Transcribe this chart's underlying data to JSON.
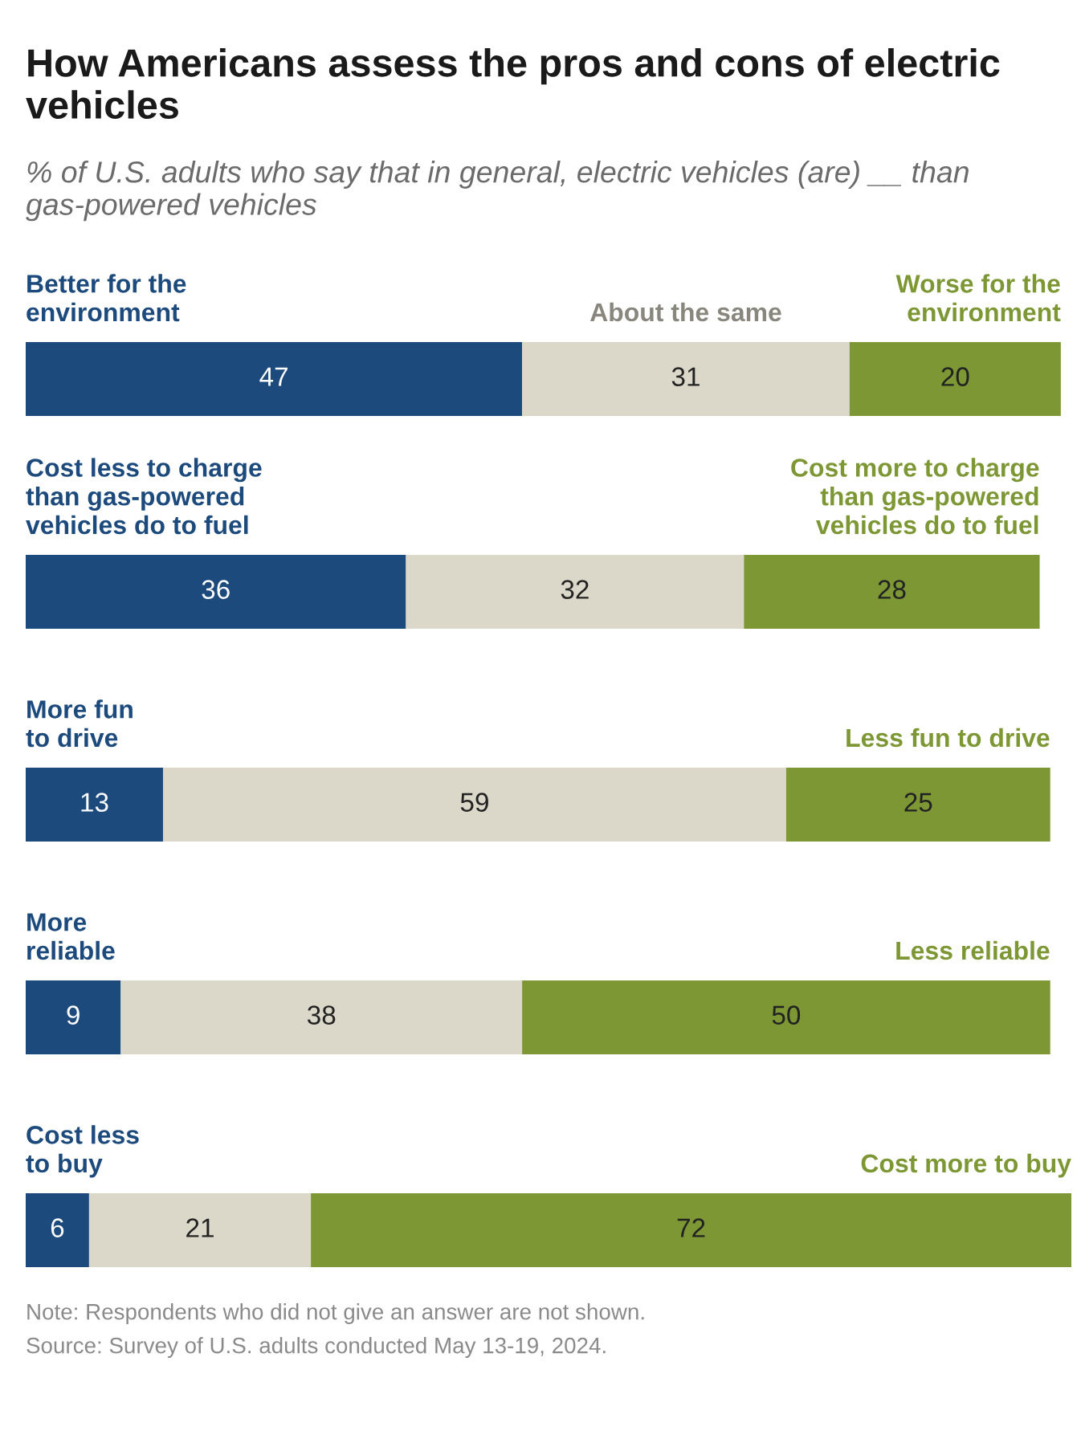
{
  "chart_data": [
    {
      "type": "bar",
      "orientation": "horizontal",
      "stacked": true,
      "data_labels": true,
      "tick_labels": false,
      "title": "How Americans assess the pros and cons of electric vehicles",
      "subtitle": "% of U.S. adults who say that in general, electric vehicles (are) __ than gas-powered vehicles",
      "categories": [
        null
      ],
      "series": [
        {
          "name": "Better for the\nenvironment",
          "color": "#1d4a7c",
          "values": [
            47
          ]
        },
        {
          "name": "About the same",
          "color": "#dcd8c9",
          "values": [
            31
          ]
        },
        {
          "name": "Worse for the\nenvironment",
          "color": "#7d9735",
          "values": [
            20
          ]
        }
      ]
    },
    {
      "type": "bar",
      "orientation": "horizontal",
      "stacked": true,
      "data_labels": true,
      "tick_labels": false,
      "categories": [
        null
      ],
      "series": [
        {
          "name": "Cost less to charge\nthan gas-powered\nvehicles do to fuel",
          "color": "#1d4a7c",
          "values": [
            36
          ]
        },
        {
          "color": "#dcd8c9",
          "values": [
            32
          ]
        },
        {
          "name": "Cost more to charge\nthan gas-powered\nvehicles do to fuel",
          "color": "#7d9735",
          "values": [
            28
          ]
        }
      ]
    },
    {
      "type": "bar",
      "orientation": "horizontal",
      "stacked": true,
      "data_labels": true,
      "tick_labels": false,
      "categories": [
        null
      ],
      "series": [
        {
          "name": "More fun\nto drive",
          "color": "#1d4a7c",
          "values": [
            13
          ]
        },
        {
          "color": "#dcd8c9",
          "values": [
            59
          ]
        },
        {
          "name": "Less fun to drive",
          "color": "#7d9735",
          "values": [
            25
          ]
        }
      ]
    },
    {
      "type": "bar",
      "orientation": "horizontal",
      "stacked": true,
      "data_labels": true,
      "tick_labels": false,
      "categories": [
        null
      ],
      "series": [
        {
          "name": "More\nreliable",
          "color": "#1d4a7c",
          "values": [
            9
          ]
        },
        {
          "color": "#dcd8c9",
          "values": [
            38
          ]
        },
        {
          "name": "Less reliable",
          "color": "#7d9735",
          "values": [
            50
          ]
        }
      ]
    },
    {
      "type": "bar",
      "orientation": "horizontal",
      "stacked": true,
      "data_labels": true,
      "tick_labels": false,
      "categories": [
        null
      ],
      "series": [
        {
          "name": "Cost less\nto buy",
          "color": "#1d4a7c",
          "values": [
            6
          ]
        },
        {
          "color": "#dcd8c9",
          "values": [
            21
          ]
        },
        {
          "name": "Cost more to buy",
          "color": "#7d9735",
          "values": [
            72
          ]
        }
      ],
      "annotations": [
        "Note: Respondents who did not give an answer are not shown.",
        "Source: Survey of U.S. adults conducted May 13-19, 2024."
      ]
    }
  ]
}
